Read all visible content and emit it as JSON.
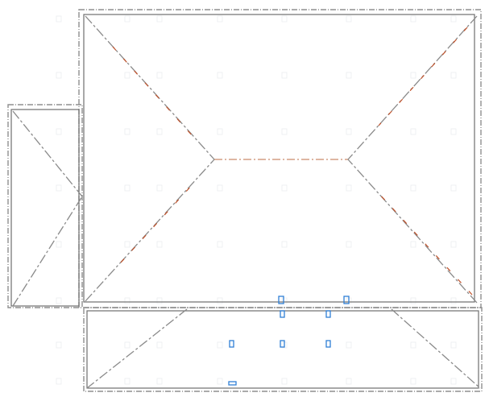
{
  "drawing": {
    "type": "roof-plan",
    "colors": {
      "background": "#ffffff",
      "outline": "#8f8f8f",
      "outline_dark": "#6f6f6f",
      "ridge": "#c98a6a",
      "hip": "#8a8a8a",
      "hip_accent": "#c0522b",
      "ghost": "#9fa9b8",
      "marker": "#2f7fd6"
    },
    "components": [
      "main-roof-outline",
      "left-wing-roof-outline",
      "bottom-wing-roof-outline",
      "main-ridge-line",
      "hip-lines",
      "ventilation-markers"
    ]
  }
}
